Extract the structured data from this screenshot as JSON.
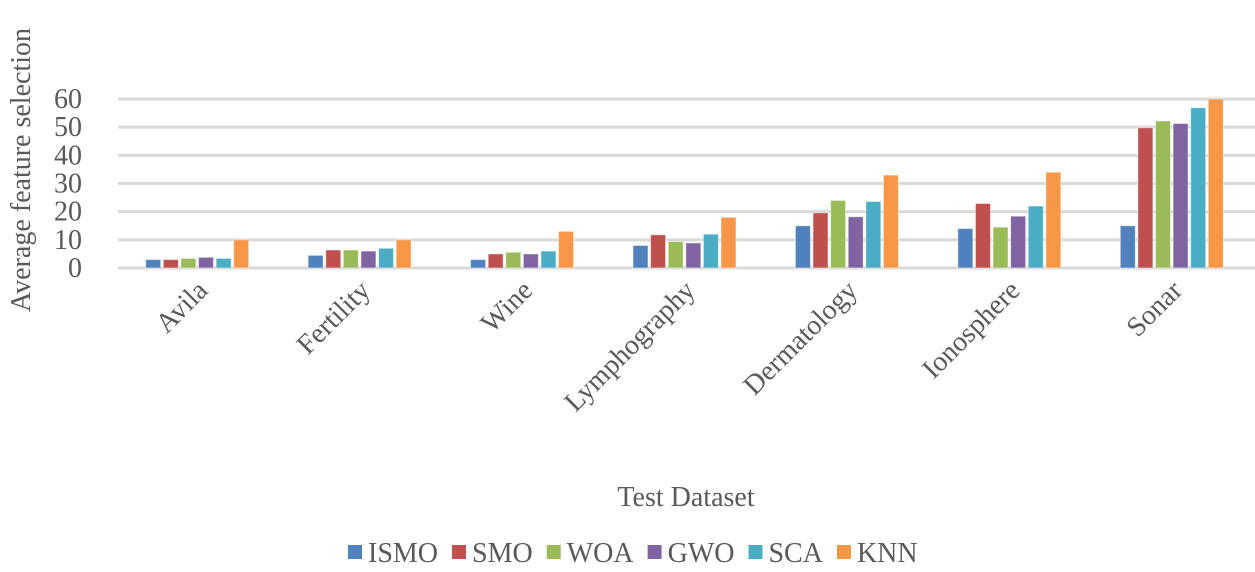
{
  "chart_data": {
    "type": "bar",
    "title": "",
    "xlabel": "Test Dataset",
    "ylabel": "Average feature selection",
    "ylim": [
      0,
      60
    ],
    "yticks": [
      0,
      10,
      20,
      30,
      40,
      50,
      60
    ],
    "grid": true,
    "legend_position": "bottom",
    "categories": [
      "Avila",
      "Fertility",
      "Wine",
      "Lymphography",
      "Dermatology",
      "Ionosphere",
      "Sonar"
    ],
    "series": [
      {
        "name": "ISMO",
        "color": "#4F81BD",
        "values": [
          3,
          4.5,
          3,
          8,
          15,
          14,
          15
        ]
      },
      {
        "name": "SMO",
        "color": "#C0504D",
        "values": [
          3,
          6.4,
          5,
          11.8,
          19.6,
          22.9,
          49.8
        ]
      },
      {
        "name": "WOA",
        "color": "#9BBB59",
        "values": [
          3.4,
          6.4,
          5.6,
          9.4,
          24,
          14.5,
          52.2
        ]
      },
      {
        "name": "GWO",
        "color": "#8064A2",
        "values": [
          3.8,
          6,
          5,
          8.9,
          18.2,
          18.4,
          51.3
        ]
      },
      {
        "name": "SCA",
        "color": "#4BACC6",
        "values": [
          3.4,
          7,
          6,
          12,
          23.6,
          22,
          56.9
        ]
      },
      {
        "name": "KNN",
        "color": "#F79646",
        "values": [
          10,
          10,
          13,
          18,
          33,
          34,
          60
        ]
      }
    ]
  }
}
